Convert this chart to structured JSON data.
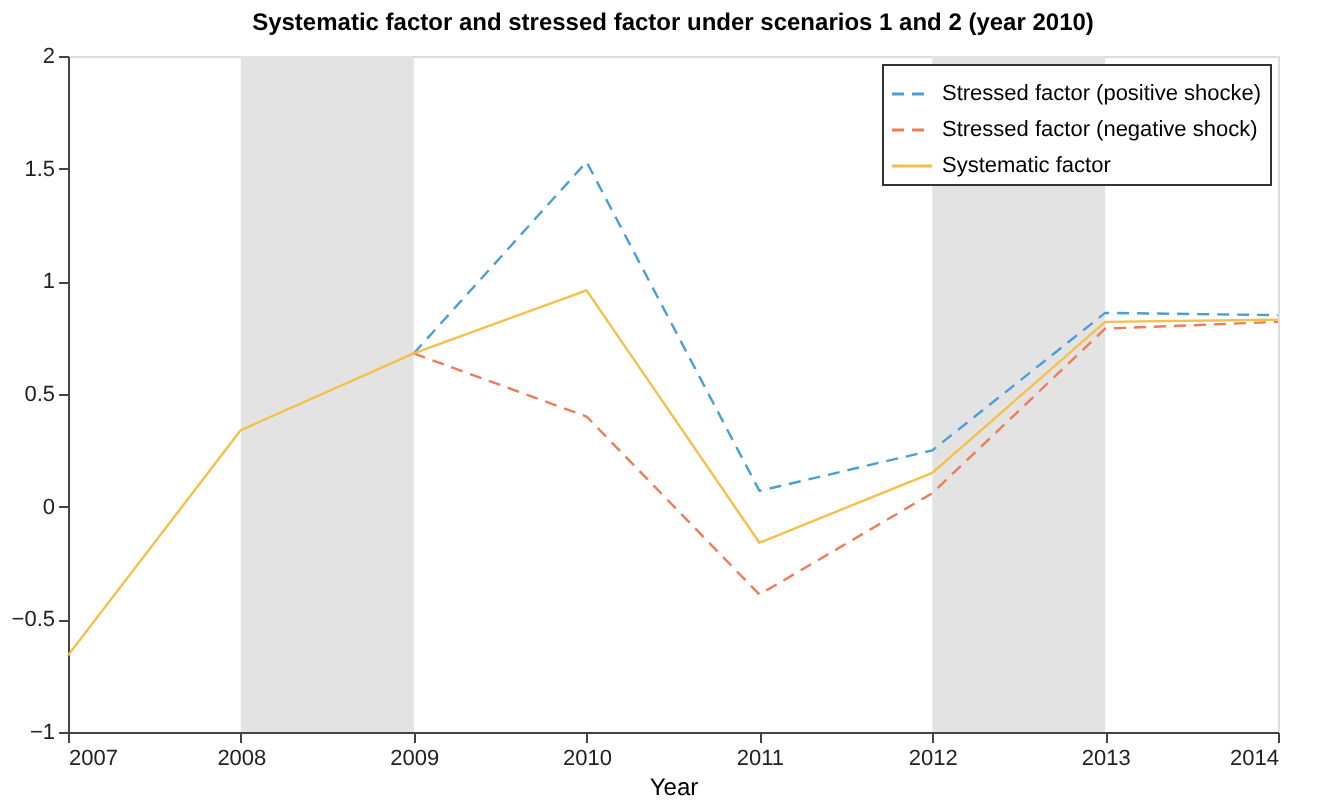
{
  "chart_data": {
    "type": "line",
    "title": "Systematic factor and stressed factor under scenarios 1 and 2 (year 2010)",
    "xlabel": "Year",
    "x": [
      2007,
      2008,
      2009,
      2010,
      2011,
      2012,
      2013,
      2014
    ],
    "series": [
      {
        "name": "Stressed factor (positive shocke)",
        "color": "#4a9fd8",
        "line_style": "dashed",
        "values": [
          null,
          null,
          0.68,
          1.53,
          0.07,
          0.25,
          0.86,
          0.85
        ]
      },
      {
        "name": "Stressed factor (negative shock)",
        "color": "#ef7b5a",
        "line_style": "dashed",
        "values": [
          null,
          null,
          0.68,
          0.4,
          -0.39,
          0.06,
          0.79,
          0.82
        ]
      },
      {
        "name": "Systematic factor",
        "color": "#f5c04a",
        "line_style": "solid",
        "values": [
          -0.66,
          0.34,
          0.68,
          0.96,
          -0.16,
          0.15,
          0.82,
          0.83
        ]
      }
    ],
    "bands": [
      {
        "axis": "x",
        "from": 2008,
        "to": 2009,
        "color": "#e3e3e3"
      },
      {
        "axis": "x",
        "from": 2012,
        "to": 2013,
        "color": "#e3e3e3"
      }
    ],
    "xlim": [
      2007,
      2014
    ],
    "xticks": [
      2007,
      2008,
      2009,
      2010,
      2011,
      2012,
      2013,
      2014
    ],
    "ylim": [
      -1,
      2
    ],
    "yticks": [
      -1,
      -0.5,
      0,
      0.5,
      1,
      1.5,
      2
    ],
    "grid": false,
    "legend": "top right",
    "marker": "none"
  }
}
